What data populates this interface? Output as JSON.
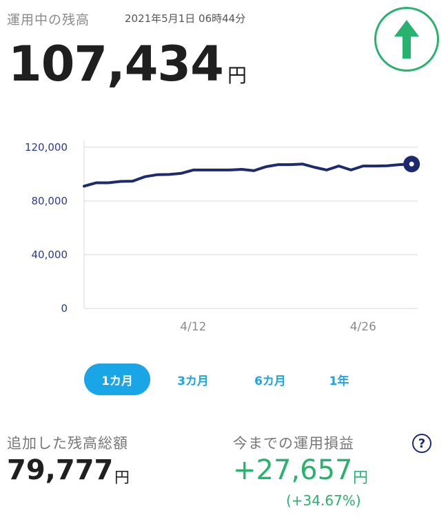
{
  "header": {
    "title": "運用中の残高",
    "timestamp": "2021年5月1日 06時44分",
    "balance": "107,434",
    "balance_unit": "円",
    "up_icon": "up-arrow-icon"
  },
  "colors": {
    "line": "#1e2a6e",
    "accent_green": "#27b36e",
    "accent_blue": "#1aa6e6"
  },
  "chart_data": {
    "type": "line",
    "y_ticks": [
      "120,000",
      "80,000",
      "40,000",
      "0"
    ],
    "y_tick_values": [
      120000,
      80000,
      40000,
      0
    ],
    "ylim": [
      0,
      125000
    ],
    "x_ticks": [
      "4/12",
      "4/26"
    ],
    "x_tick_positions": [
      12,
      26
    ],
    "xlim": [
      3,
      30.5
    ],
    "grid": true,
    "series": [
      {
        "x": [
          3,
          4,
          5,
          6,
          7,
          8,
          9,
          10,
          11,
          12,
          13,
          14,
          15,
          16,
          17,
          18,
          19,
          20,
          21,
          22,
          23,
          24,
          25,
          26,
          27,
          28,
          29,
          30
        ],
        "values": [
          91000,
          93500,
          93500,
          94500,
          94700,
          98000,
          99500,
          99700,
          100500,
          103000,
          103000,
          103000,
          103000,
          103500,
          102500,
          105500,
          107000,
          107000,
          107500,
          105000,
          103000,
          106000,
          103000,
          106000,
          106000,
          106200,
          107000,
          107434
        ]
      }
    ]
  },
  "tabs": [
    {
      "label": "1カ月",
      "active": true
    },
    {
      "label": "3カ月",
      "active": false
    },
    {
      "label": "6カ月",
      "active": false
    },
    {
      "label": "1年",
      "active": false
    }
  ],
  "summary": {
    "added_label": "追加した残高総額",
    "added_value": "79,777",
    "added_unit": "円",
    "profit_label": "今までの運用損益",
    "profit_value": "+27,657",
    "profit_unit": "円",
    "profit_pct": "(+34.67%)",
    "help_icon": "?"
  }
}
